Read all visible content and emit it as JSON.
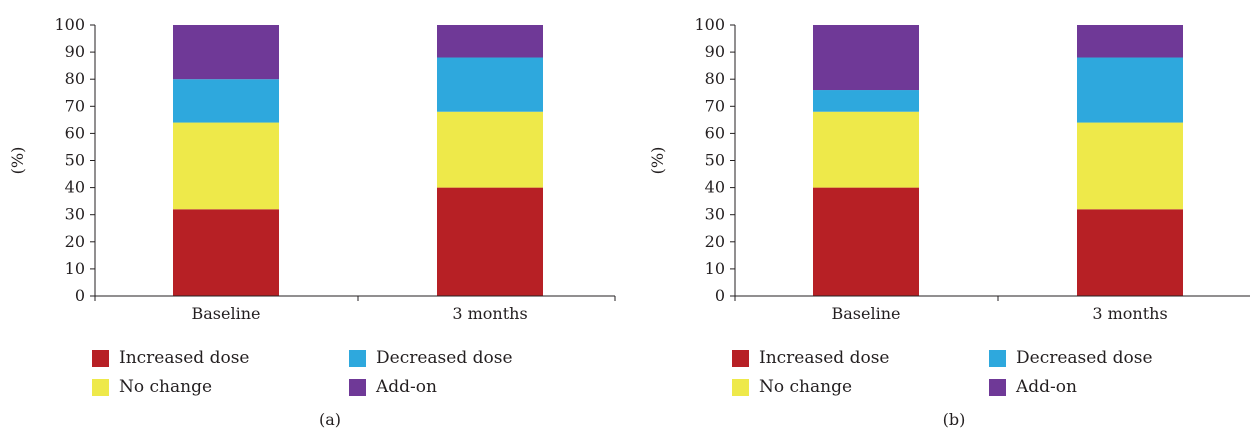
{
  "colors": {
    "increased_dose": "#b72025",
    "no_change": "#eee94a",
    "decreased_dose": "#2ea8dd",
    "add_on": "#6f3997"
  },
  "legend": [
    {
      "key": "increased_dose",
      "label": "Increased dose"
    },
    {
      "key": "decreased_dose",
      "label": "Decreased dose"
    },
    {
      "key": "no_change",
      "label": "No change"
    },
    {
      "key": "add_on",
      "label": "Add-on"
    }
  ],
  "panels": [
    {
      "caption": "(a)"
    },
    {
      "caption": "(b)"
    }
  ],
  "chart_data": [
    {
      "type": "bar",
      "stacked": true,
      "title": "",
      "xlabel": "",
      "ylabel": "(%)",
      "ylim": [
        0,
        100
      ],
      "yticks": [
        0,
        10,
        20,
        30,
        40,
        50,
        60,
        70,
        80,
        90,
        100
      ],
      "categories": [
        "Baseline",
        "3 months"
      ],
      "series": [
        {
          "name": "Increased dose",
          "key": "increased_dose",
          "values": [
            32,
            40
          ]
        },
        {
          "name": "No change",
          "key": "no_change",
          "values": [
            32,
            28
          ]
        },
        {
          "name": "Decreased dose",
          "key": "decreased_dose",
          "values": [
            16,
            20
          ]
        },
        {
          "name": "Add-on",
          "key": "add_on",
          "values": [
            20,
            12
          ]
        }
      ],
      "legend_position": "bottom",
      "grid": false
    },
    {
      "type": "bar",
      "stacked": true,
      "title": "",
      "xlabel": "",
      "ylabel": "(%)",
      "ylim": [
        0,
        100
      ],
      "yticks": [
        0,
        10,
        20,
        30,
        40,
        50,
        60,
        70,
        80,
        90,
        100
      ],
      "categories": [
        "Baseline",
        "3 months"
      ],
      "series": [
        {
          "name": "Increased dose",
          "key": "increased_dose",
          "values": [
            40,
            32
          ]
        },
        {
          "name": "No change",
          "key": "no_change",
          "values": [
            28,
            32
          ]
        },
        {
          "name": "Decreased dose",
          "key": "decreased_dose",
          "values": [
            8,
            24
          ]
        },
        {
          "name": "Add-on",
          "key": "add_on",
          "values": [
            24,
            12
          ]
        }
      ],
      "legend_position": "bottom",
      "grid": false
    }
  ]
}
